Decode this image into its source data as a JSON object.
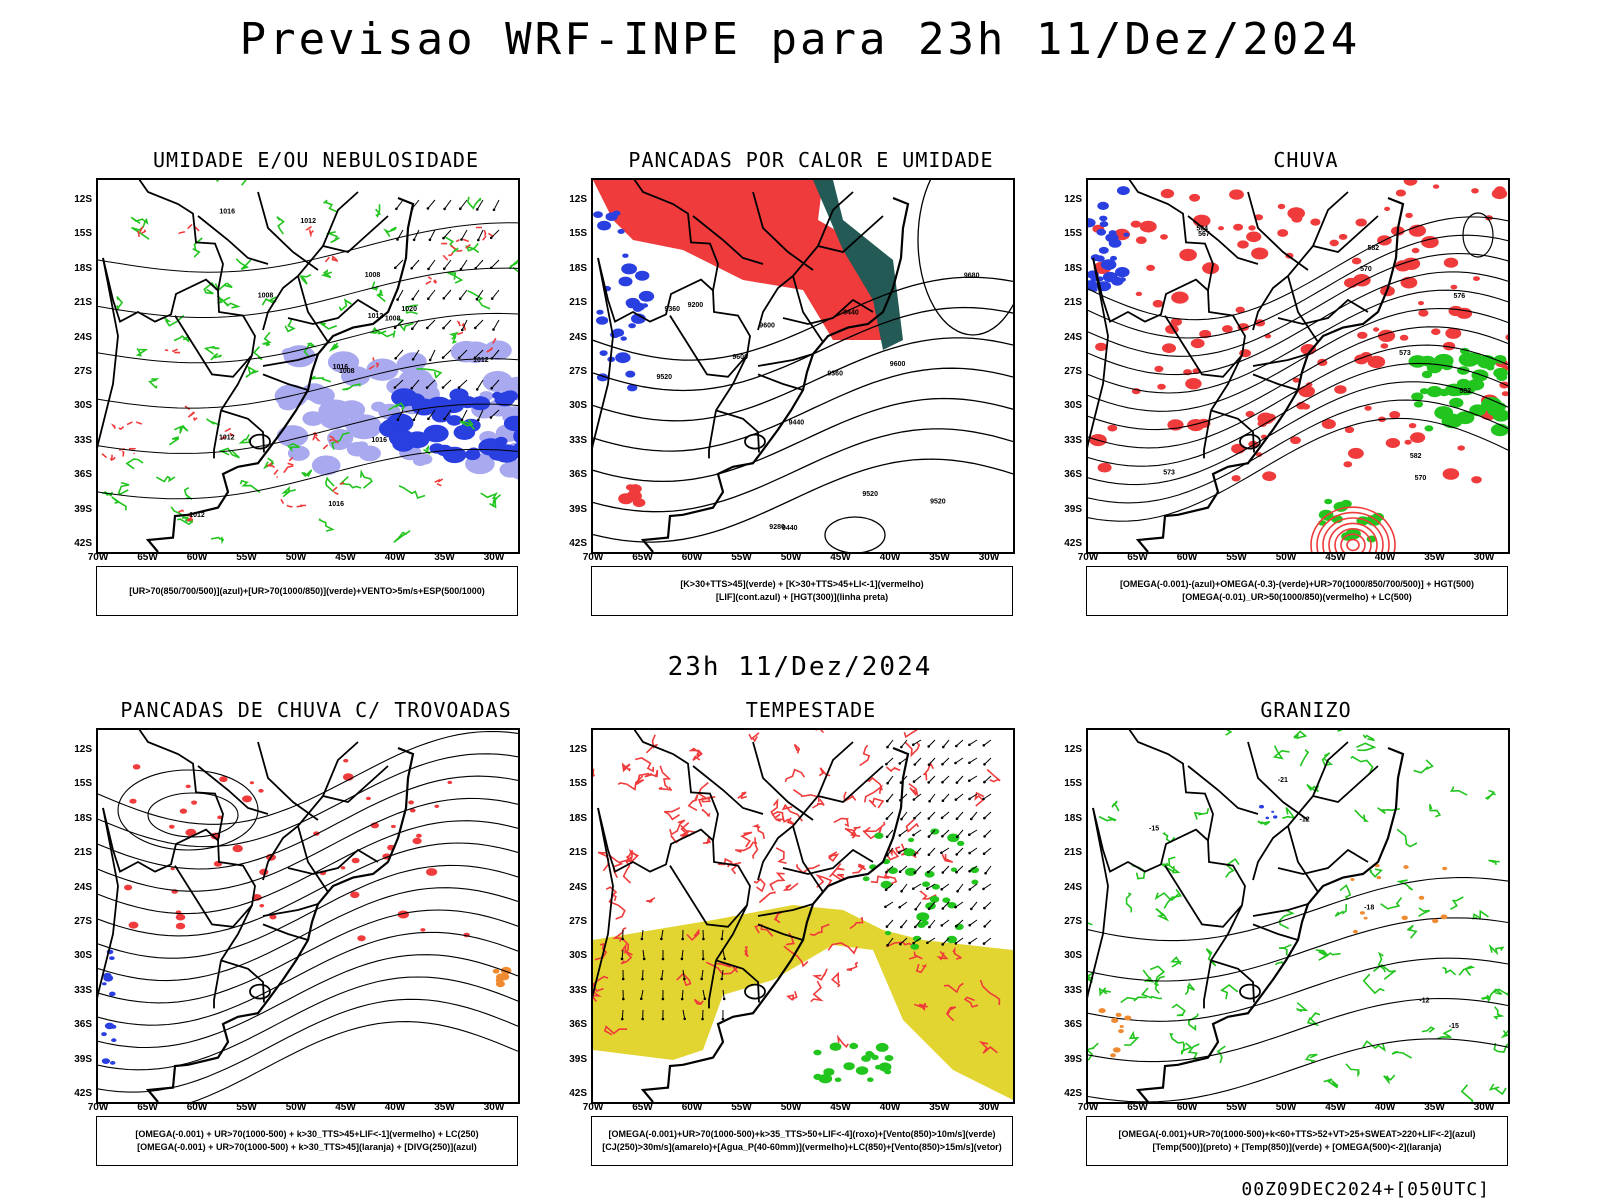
{
  "title": "Previsao WRF-INPE  para 23h 11/Dez/2024",
  "middle_title": "23h 11/Dez/2024",
  "footer": "00Z09DEC2024+[050UTC]",
  "lat_labels": [
    "12S",
    "15S",
    "18S",
    "21S",
    "24S",
    "27S",
    "30S",
    "33S",
    "36S",
    "39S",
    "42S"
  ],
  "lon_labels": [
    "70W",
    "65W",
    "60W",
    "55W",
    "50W",
    "45W",
    "40W",
    "35W",
    "30W"
  ],
  "colors": {
    "red": "#ef3b3b",
    "green": "#22c41e",
    "blue": "#2a3fe0",
    "lavender": "#a9a9ef",
    "orange": "#f08a30",
    "yellow": "#e3d531",
    "darkteal": "#235a55",
    "purple": "#b020c0"
  },
  "panels": [
    {
      "title": "UMIDADE E/OU NEBULOSIDADE",
      "legend": [
        "[UR>70(850/700/500)](azul)+[UR>70(1000/850)](verde)+VENTO>5m/s+ESP(500/1000)"
      ]
    },
    {
      "title": "PANCADAS POR CALOR E UMIDADE",
      "legend": [
        "[K>30+TTS>45](verde) + [K>30+TTS>45+LI<-1](vermelho)",
        "[LIF](cont.azul) + [HGT(300)](linha preta)"
      ]
    },
    {
      "title": "CHUVA",
      "legend": [
        "[OMEGA(-0.001)-(azul)+OMEGA(-0.3)-(verde)+UR>70(1000/850/700/500)] + HGT(500)",
        "[OMEGA(-0.01)_UR>50(1000/850)(vermelho) + LC(500)"
      ]
    },
    {
      "title": "PANCADAS DE CHUVA C/ TROVOADAS",
      "legend": [
        "[OMEGA(-0.001) + UR>70(1000-500) + k>30_TTS>45+LIF<-1](vermelho) + LC(250)",
        "[OMEGA(-0.001) + UR>70(1000-500) + k>30_TTS>45](laranja) + [DIVG(250)](azul)"
      ]
    },
    {
      "title": "TEMPESTADE",
      "legend": [
        "[OMEGA(-0.001)+UR>70(1000-500)+k>35_TTS>50+LIF<-4](roxo)+[Vento(850)>10m/s](verde)",
        "[CJ(250)>30m/s](amarelo)+[Agua_P(40-60mm)](vermelho)+LC(850)+[Vento(850)>15m/s](vetor)"
      ]
    },
    {
      "title": "GRANIZO",
      "legend": [
        "[OMEGA(-0.001)+UR>70(1000-500)+k<60+TTS>52+VT>25+SWEAT>220+LIF<-2](azul)",
        "[Temp(500)](preto) + [Temp(850)](verde) + [OMEGA(500)<-2](laranja)"
      ]
    }
  ],
  "contour_labels": {
    "p1": [
      "1012",
      "1016",
      "1012",
      "1008",
      "1008",
      "1012",
      "1016",
      "1008",
      "1012",
      "1020",
      "1016",
      "1016",
      "1012",
      "1008"
    ],
    "p2": [
      "9600",
      "9680",
      "9600",
      "9600",
      "9520",
      "9440",
      "9360",
      "9520",
      "9440",
      "9360",
      "9200",
      "9280",
      "9440",
      "9520"
    ],
    "p3": [
      "582",
      "582",
      "576",
      "570",
      "573",
      "573",
      "567",
      "564",
      "570",
      "582"
    ],
    "p6": [
      "-12",
      "-12",
      "-15",
      "-18",
      "-21",
      "-15"
    ]
  }
}
